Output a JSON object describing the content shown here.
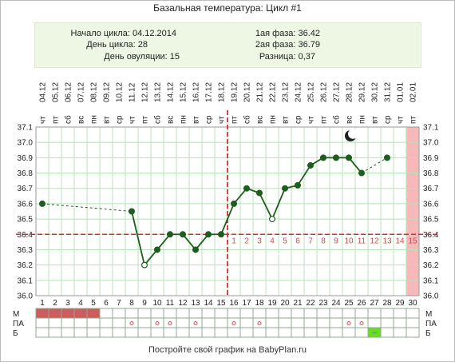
{
  "title": "Базальная температура: Цикл #1",
  "info": {
    "cycle_start": "Начало цикла: 04.12.2014",
    "cycle_day": "День цикла: 28",
    "ovulation_day": "День овуляции: 15",
    "phase1": "1ая фаза: 36.42",
    "phase2": "2ая фаза: 36.79",
    "difference": "Разница: 0,37"
  },
  "footer": "Постройте свой график на BabyPlan.ru",
  "colors": {
    "line": "#1f5c1f",
    "grid": "#b5e3b5",
    "cover": "#d32f2f",
    "menstruation": "#cd5c5c",
    "highlight": "#f6b8b8",
    "marker_b": "#66dd22"
  },
  "icons": {
    "moon": "moon-icon"
  },
  "chart_data": {
    "type": "line",
    "days": [
      1,
      2,
      3,
      4,
      5,
      6,
      7,
      8,
      9,
      10,
      11,
      12,
      13,
      14,
      15,
      16,
      17,
      18,
      19,
      20,
      21,
      22,
      23,
      24,
      25,
      26,
      27,
      28,
      29,
      30
    ],
    "dates": [
      "04.12",
      "05.12",
      "06.12",
      "07.12",
      "08.12",
      "09.12",
      "10.12",
      "11.12",
      "12.12",
      "13.12",
      "14.12",
      "15.12",
      "16.12",
      "17.12",
      "18.12",
      "19.12",
      "20.12",
      "21.12",
      "22.12",
      "23.12",
      "24.12",
      "25.12",
      "26.12",
      "27.12",
      "28.12",
      "29.12",
      "30.12",
      "31.12",
      "01.01",
      "02.01"
    ],
    "weekdays": [
      "чт",
      "пт",
      "сб",
      "вс",
      "пн",
      "вт",
      "ср",
      "чт",
      "пт",
      "сб",
      "вс",
      "пн",
      "вт",
      "ср",
      "чт",
      "пт",
      "сб",
      "вс",
      "пн",
      "вт",
      "ср",
      "чт",
      "пт",
      "сб",
      "вс",
      "пн",
      "вт",
      "ср",
      "чт",
      "пт"
    ],
    "temperatures": [
      36.6,
      null,
      null,
      null,
      null,
      null,
      null,
      36.55,
      36.2,
      36.3,
      36.4,
      36.4,
      36.3,
      36.4,
      36.4,
      36.6,
      36.7,
      36.67,
      36.5,
      36.7,
      36.72,
      36.85,
      36.9,
      36.9,
      36.9,
      36.8,
      null,
      36.9,
      null,
      null
    ],
    "hollow_points": [
      9,
      19
    ],
    "dashed_segments": [
      [
        1,
        8
      ],
      [
        26,
        28
      ]
    ],
    "ylim": [
      36.0,
      37.1
    ],
    "y_ticks": [
      "36.0",
      "36.1",
      "36.2",
      "36.3",
      "36.4",
      "36.5",
      "36.6",
      "36.7",
      "36.8",
      "36.9",
      "37.0",
      "37.1"
    ],
    "cover_line": 36.4,
    "ovulation_day": 15,
    "phase2_labels": [
      "1",
      "2",
      "3",
      "4",
      "5",
      "6",
      "7",
      "8",
      "9",
      "10",
      "11",
      "12",
      "13",
      "14",
      "15"
    ],
    "highlight_day": 30,
    "moon_day": 25,
    "rows": [
      {
        "label": "М",
        "marks": [
          1,
          2,
          3,
          4,
          5
        ]
      },
      {
        "label": "ПА",
        "marks": [
          8,
          10,
          11,
          13,
          16,
          18,
          25,
          26
        ],
        "glyph": "o"
      },
      {
        "label": "Б",
        "marks": [
          27
        ],
        "glyph": "–"
      }
    ],
    "grid": true
  }
}
